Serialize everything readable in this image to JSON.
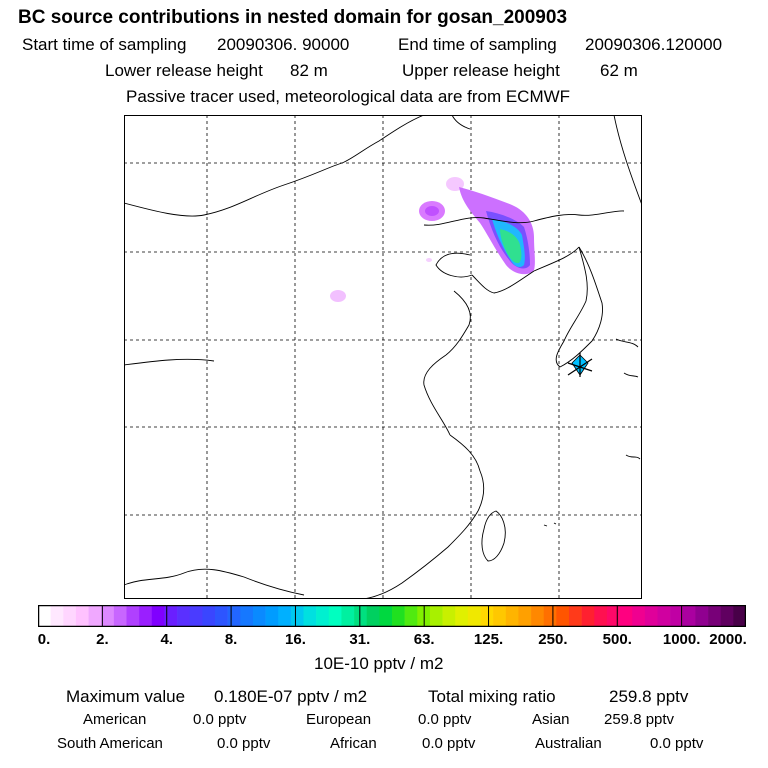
{
  "header": {
    "title": "BC  source contributions in nested domain for gosan_200903",
    "start_label": "Start time of sampling",
    "start_value": "20090306. 90000",
    "end_label": "End time of sampling",
    "end_value": "20090306.120000",
    "lower_label": "Lower release height",
    "lower_value": "82 m",
    "upper_label": "Upper release height",
    "upper_value": "62 m",
    "tracer_note": "Passive tracer used, meteorological data are from ECMWF"
  },
  "colorbar": {
    "unit": "10E-10 pptv / m2",
    "tick_labels": [
      "0.",
      "2.",
      "4.",
      "8.",
      "16.",
      "31.",
      "63.",
      "125.",
      "250.",
      "500.",
      "1000.",
      "2000."
    ],
    "colors": [
      "#ffffff",
      "#ffe8ff",
      "#ffd6ff",
      "#ffc2ff",
      "#f0a8ff",
      "#dd88ff",
      "#c866ff",
      "#b040ff",
      "#9a1fff",
      "#8000ff",
      "#6a1fff",
      "#5a30ff",
      "#4a3cff",
      "#3a46ff",
      "#2d55ff",
      "#2266ff",
      "#1678ff",
      "#0a8aff",
      "#009cff",
      "#00b0ff",
      "#00c8f0",
      "#00e0e0",
      "#00f0d0",
      "#00ffc0",
      "#00f0a0",
      "#00e080",
      "#00d060",
      "#00d840",
      "#20e020",
      "#50ea10",
      "#80f000",
      "#a8f000",
      "#c8f000",
      "#e0f000",
      "#f0e800",
      "#ffd800",
      "#ffc800",
      "#ffb400",
      "#ffa000",
      "#ff8800",
      "#ff7000",
      "#ff5500",
      "#ff3a1a",
      "#ff2030",
      "#ff1050",
      "#ff0868",
      "#ff0080",
      "#f00090",
      "#e0009a",
      "#d000a0",
      "#c000a4",
      "#aa00a0",
      "#900090",
      "#780078",
      "#600060",
      "#480048"
    ]
  },
  "stats": {
    "max_label": "Maximum value",
    "max_value": "0.180E-07 pptv / m2",
    "total_label": "Total mixing ratio",
    "total_value": "259.8 pptv",
    "regions": [
      {
        "name": "American",
        "value": "0.0 pptv"
      },
      {
        "name": "European",
        "value": "0.0 pptv"
      },
      {
        "name": "Asian",
        "value": "259.8 pptv"
      },
      {
        "name": "South American",
        "value": "0.0 pptv"
      },
      {
        "name": "African",
        "value": "0.0 pptv"
      },
      {
        "name": "Australian",
        "value": "0.0 pptv"
      }
    ]
  },
  "map": {
    "receptor_marker": "star-marker",
    "plume_colors": {
      "light": "#f0b0ff",
      "mid": "#c060ff",
      "strong": "#9040ff",
      "blue": "#3050ff",
      "cyan": "#00c0ff",
      "green": "#40e080"
    }
  }
}
